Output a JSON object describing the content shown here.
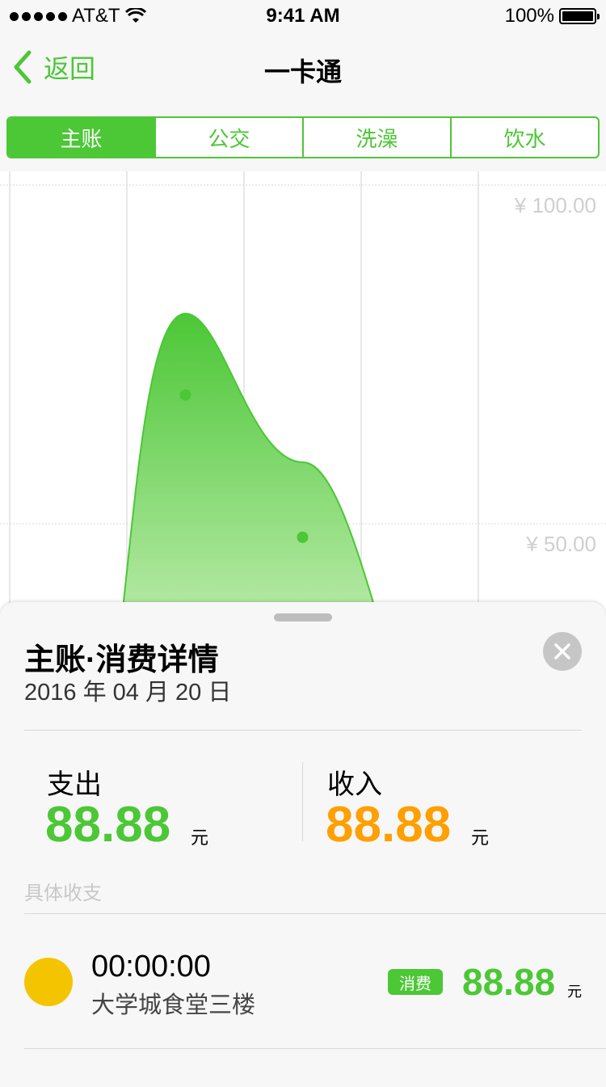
{
  "status_bar": {
    "carrier": "AT&T",
    "time": "9:41 AM",
    "battery": "100%"
  },
  "nav": {
    "back_label": "返回",
    "title": "一卡通"
  },
  "tabs": [
    {
      "label": "主账",
      "active": true
    },
    {
      "label": "公交",
      "active": false
    },
    {
      "label": "洗澡",
      "active": false
    },
    {
      "label": "饮水",
      "active": false
    }
  ],
  "chart_data": {
    "type": "area",
    "ytick_labels": [
      "¥ 100.00",
      "¥ 50.00"
    ],
    "y_ticks": [
      100,
      50
    ],
    "points": [
      {
        "x": 1.5,
        "y": 69
      },
      {
        "x": 2.5,
        "y": 48
      }
    ],
    "color": "#4cc736"
  },
  "sheet": {
    "title": "主账·消费详情",
    "date": "2016 年 04 月 20 日",
    "expense_label": "支出",
    "expense_value": "88.88",
    "income_label": "收入",
    "income_value": "88.88",
    "unit": "元",
    "section_label": "具体收支",
    "transactions": [
      {
        "time": "00:00:00",
        "place": "大学城食堂三楼",
        "tag": "消费",
        "amount": "88.88",
        "unit": "元"
      }
    ]
  },
  "colors": {
    "accent": "#4cc736",
    "income": "#ff9f00",
    "tx_dot": "#f5c400"
  }
}
